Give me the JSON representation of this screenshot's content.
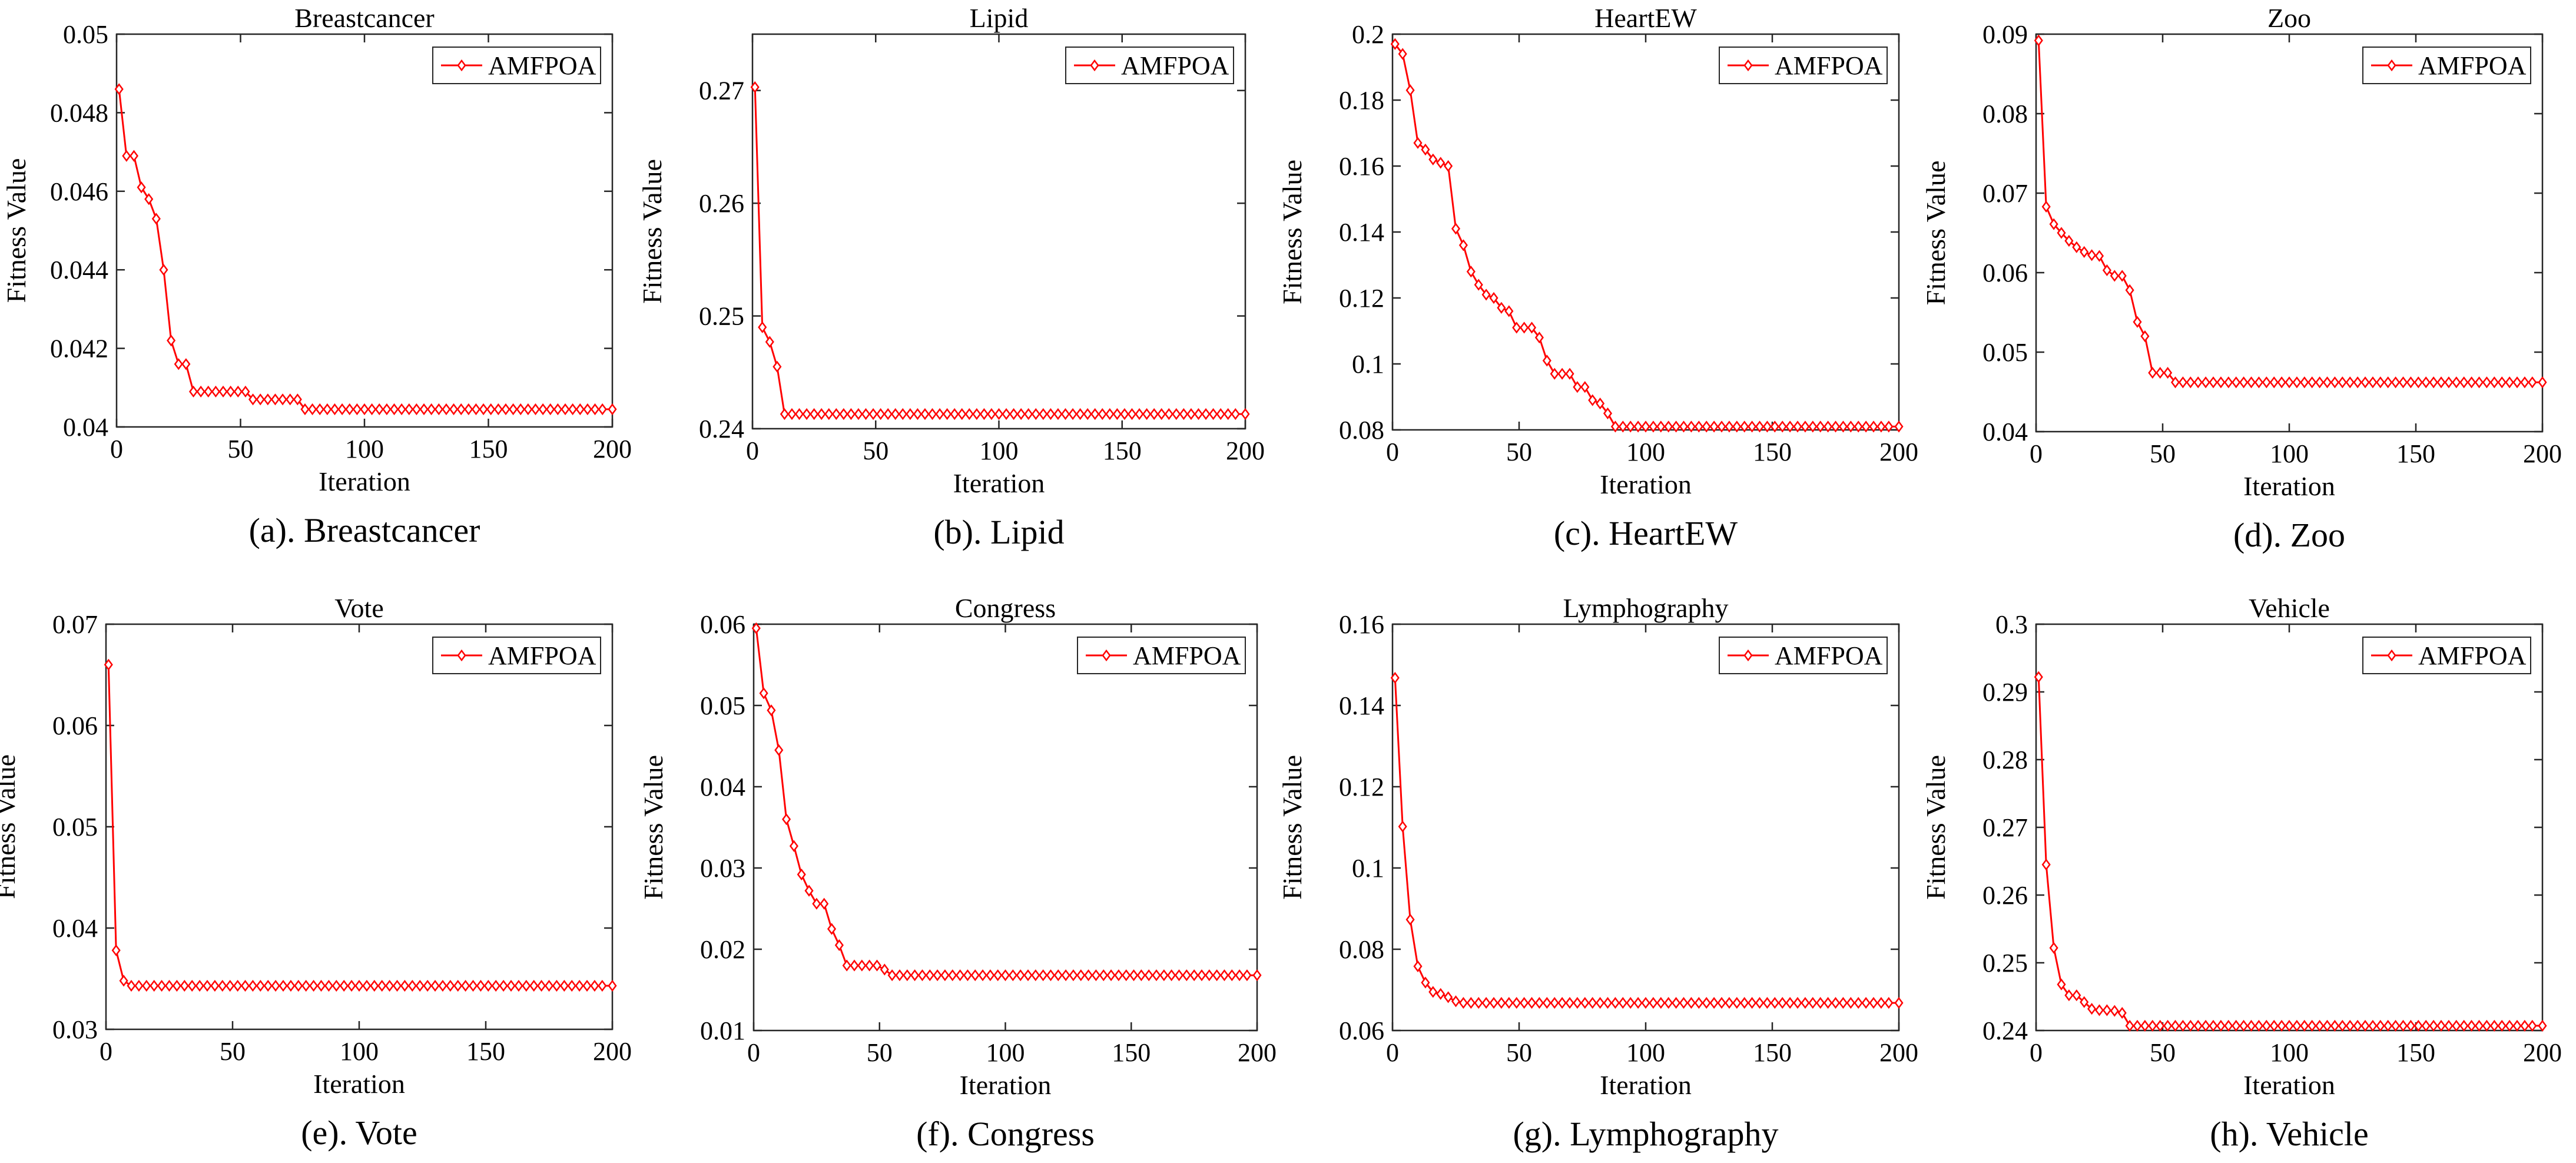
{
  "figure": {
    "accent_color": "#ff0000",
    "axis_color": "#262626"
  },
  "chart_data": [
    {
      "type": "line",
      "title": "Breastcancer",
      "caption": "(a). Breastcancer",
      "xlabel": "Iteration",
      "ylabel": "Fitness Value",
      "xlim": [
        0,
        200
      ],
      "ylim": [
        0.04,
        0.05
      ],
      "xticks": [
        0,
        50,
        100,
        150,
        200
      ],
      "xtick_labels": [
        "0",
        "50",
        "100",
        "150",
        "200"
      ],
      "yticks": [
        0.04,
        0.042,
        0.044,
        0.046,
        0.048,
        0.05
      ],
      "ytick_labels": [
        "0.04",
        "0.042",
        "0.044",
        "0.046",
        "0.048",
        "0.05"
      ],
      "legend": {
        "position": "top-right",
        "label": "AMFPOA"
      },
      "series": [
        {
          "name": "AMFPOA",
          "color": "#ff0000",
          "marker": "diamond",
          "points": [
            [
              1,
              0.0486
            ],
            [
              4,
              0.0469
            ],
            [
              7,
              0.0469
            ],
            [
              10,
              0.0461
            ],
            [
              13,
              0.0458
            ],
            [
              16,
              0.0453
            ],
            [
              19,
              0.044
            ],
            [
              22,
              0.0422
            ],
            [
              25,
              0.0416
            ],
            [
              28,
              0.0416
            ],
            [
              31,
              0.0409
            ],
            [
              52,
              0.0409
            ],
            [
              55,
              0.0407
            ],
            [
              73,
              0.0407
            ],
            [
              76,
              0.04045
            ],
            [
              200,
              0.04045
            ]
          ]
        }
      ]
    },
    {
      "type": "line",
      "title": "Lipid",
      "caption": "(b). Lipid",
      "xlabel": "Iteration",
      "ylabel": "Fitness Value",
      "xlim": [
        0,
        200
      ],
      "ylim": [
        0.24,
        0.275
      ],
      "xticks": [
        0,
        50,
        100,
        150,
        200
      ],
      "xtick_labels": [
        "0",
        "50",
        "100",
        "150",
        "200"
      ],
      "yticks": [
        0.24,
        0.25,
        0.26,
        0.27
      ],
      "ytick_labels": [
        "0.24",
        "0.25",
        "0.26",
        "0.27"
      ],
      "legend": {
        "position": "top-right",
        "label": "AMFPOA"
      },
      "series": [
        {
          "name": "AMFPOA",
          "color": "#ff0000",
          "marker": "diamond",
          "points": [
            [
              1,
              0.2703
            ],
            [
              4,
              0.249
            ],
            [
              7,
              0.2477
            ],
            [
              10,
              0.2455
            ],
            [
              13,
              0.2413
            ],
            [
              200,
              0.2413
            ]
          ]
        }
      ]
    },
    {
      "type": "line",
      "title": "HeartEW",
      "caption": "(c). HeartEW",
      "xlabel": "Iteration",
      "ylabel": "Fitness Value",
      "xlim": [
        0,
        200
      ],
      "ylim": [
        0.08,
        0.2
      ],
      "xticks": [
        0,
        50,
        100,
        150,
        200
      ],
      "xtick_labels": [
        "0",
        "50",
        "100",
        "150",
        "200"
      ],
      "yticks": [
        0.08,
        0.1,
        0.12,
        0.14,
        0.16,
        0.18,
        0.2
      ],
      "ytick_labels": [
        "0.08",
        "0.1",
        "0.12",
        "0.14",
        "0.16",
        "0.18",
        "0.2"
      ],
      "legend": {
        "position": "top-right",
        "label": "AMFPOA"
      },
      "series": [
        {
          "name": "AMFPOA",
          "color": "#ff0000",
          "marker": "diamond",
          "points": [
            [
              1,
              0.197
            ],
            [
              4,
              0.194
            ],
            [
              7,
              0.183
            ],
            [
              10,
              0.167
            ],
            [
              13,
              0.165
            ],
            [
              16,
              0.162
            ],
            [
              19,
              0.161
            ],
            [
              22,
              0.16
            ],
            [
              25,
              0.141
            ],
            [
              28,
              0.136
            ],
            [
              31,
              0.128
            ],
            [
              34,
              0.124
            ],
            [
              37,
              0.121
            ],
            [
              40,
              0.12
            ],
            [
              43,
              0.117
            ],
            [
              46,
              0.116
            ],
            [
              49,
              0.111
            ],
            [
              52,
              0.111
            ],
            [
              55,
              0.111
            ],
            [
              58,
              0.108
            ],
            [
              61,
              0.101
            ],
            [
              64,
              0.097
            ],
            [
              67,
              0.097
            ],
            [
              70,
              0.097
            ],
            [
              73,
              0.093
            ],
            [
              76,
              0.093
            ],
            [
              79,
              0.089
            ],
            [
              82,
              0.088
            ],
            [
              85,
              0.085
            ],
            [
              88,
              0.081
            ],
            [
              200,
              0.081
            ]
          ]
        }
      ]
    },
    {
      "type": "line",
      "title": "Zoo",
      "caption": "(d). Zoo",
      "xlabel": "Iteration",
      "ylabel": "Fitness Value",
      "xlim": [
        0,
        200
      ],
      "ylim": [
        0.04,
        0.09
      ],
      "xticks": [
        0,
        50,
        100,
        150,
        200
      ],
      "xtick_labels": [
        "0",
        "50",
        "100",
        "150",
        "200"
      ],
      "yticks": [
        0.04,
        0.05,
        0.06,
        0.07,
        0.08,
        0.09
      ],
      "ytick_labels": [
        "0.04",
        "0.05",
        "0.06",
        "0.07",
        "0.08",
        "0.09"
      ],
      "legend": {
        "position": "top-right",
        "label": "AMFPOA"
      },
      "series": [
        {
          "name": "AMFPOA",
          "color": "#ff0000",
          "marker": "diamond",
          "points": [
            [
              1,
              0.0892
            ],
            [
              4,
              0.0683
            ],
            [
              7,
              0.0661
            ],
            [
              10,
              0.065
            ],
            [
              13,
              0.064
            ],
            [
              16,
              0.0632
            ],
            [
              19,
              0.0626
            ],
            [
              22,
              0.0622
            ],
            [
              25,
              0.0621
            ],
            [
              28,
              0.0603
            ],
            [
              31,
              0.0596
            ],
            [
              34,
              0.0596
            ],
            [
              37,
              0.0578
            ],
            [
              40,
              0.0538
            ],
            [
              43,
              0.052
            ],
            [
              46,
              0.0474
            ],
            [
              49,
              0.0474
            ],
            [
              52,
              0.0474
            ],
            [
              55,
              0.0462
            ],
            [
              200,
              0.0462
            ]
          ]
        }
      ]
    },
    {
      "type": "line",
      "title": "Vote",
      "caption": "(e). Vote",
      "xlabel": "Iteration",
      "ylabel": "Fitness Value",
      "xlim": [
        0,
        200
      ],
      "ylim": [
        0.03,
        0.07
      ],
      "xticks": [
        0,
        50,
        100,
        150,
        200
      ],
      "xtick_labels": [
        "0",
        "50",
        "100",
        "150",
        "200"
      ],
      "yticks": [
        0.03,
        0.04,
        0.05,
        0.06,
        0.07
      ],
      "ytick_labels": [
        "0.03",
        "0.04",
        "0.05",
        "0.06",
        "0.07"
      ],
      "legend": {
        "position": "top-right",
        "label": "AMFPOA"
      },
      "series": [
        {
          "name": "AMFPOA",
          "color": "#ff0000",
          "marker": "diamond",
          "points": [
            [
              1,
              0.066
            ],
            [
              4,
              0.0378
            ],
            [
              7,
              0.0348
            ],
            [
              10,
              0.0343
            ],
            [
              200,
              0.0343
            ]
          ]
        }
      ]
    },
    {
      "type": "line",
      "title": "Congress",
      "caption": "(f). Congress",
      "xlabel": "Iteration",
      "ylabel": "Fitness Value",
      "xlim": [
        0,
        200
      ],
      "ylim": [
        0.01,
        0.06
      ],
      "xticks": [
        0,
        50,
        100,
        150,
        200
      ],
      "xtick_labels": [
        "0",
        "50",
        "100",
        "150",
        "200"
      ],
      "yticks": [
        0.01,
        0.02,
        0.03,
        0.04,
        0.05,
        0.06
      ],
      "ytick_labels": [
        "0.01",
        "0.02",
        "0.03",
        "0.04",
        "0.05",
        "0.06"
      ],
      "legend": {
        "position": "top-right",
        "label": "AMFPOA"
      },
      "series": [
        {
          "name": "AMFPOA",
          "color": "#ff0000",
          "marker": "diamond",
          "points": [
            [
              1,
              0.0595
            ],
            [
              4,
              0.0515
            ],
            [
              7,
              0.0494
            ],
            [
              10,
              0.0445
            ],
            [
              13,
              0.036
            ],
            [
              16,
              0.0327
            ],
            [
              19,
              0.0292
            ],
            [
              22,
              0.0272
            ],
            [
              25,
              0.0256
            ],
            [
              28,
              0.0256
            ],
            [
              31,
              0.0225
            ],
            [
              34,
              0.0205
            ],
            [
              37,
              0.018
            ],
            [
              40,
              0.018
            ],
            [
              43,
              0.018
            ],
            [
              46,
              0.018
            ],
            [
              49,
              0.018
            ],
            [
              52,
              0.0175
            ],
            [
              55,
              0.0168
            ],
            [
              200,
              0.0168
            ]
          ]
        }
      ]
    },
    {
      "type": "line",
      "title": "Lymphography",
      "caption": "(g). Lymphography",
      "xlabel": "Iteration",
      "ylabel": "Fitness Value",
      "xlim": [
        0,
        200
      ],
      "ylim": [
        0.06,
        0.16
      ],
      "xticks": [
        0,
        50,
        100,
        150,
        200
      ],
      "xtick_labels": [
        "0",
        "50",
        "100",
        "150",
        "200"
      ],
      "yticks": [
        0.06,
        0.08,
        0.1,
        0.12,
        0.14,
        0.16
      ],
      "ytick_labels": [
        "0.06",
        "0.08",
        "0.1",
        "0.12",
        "0.14",
        "0.16"
      ],
      "legend": {
        "position": "top-right",
        "label": "AMFPOA"
      },
      "series": [
        {
          "name": "AMFPOA",
          "color": "#ff0000",
          "marker": "diamond",
          "points": [
            [
              1,
              0.1468
            ],
            [
              4,
              0.1102
            ],
            [
              7,
              0.0873
            ],
            [
              10,
              0.0758
            ],
            [
              13,
              0.0718
            ],
            [
              16,
              0.0695
            ],
            [
              19,
              0.069
            ],
            [
              22,
              0.0682
            ],
            [
              25,
              0.0672
            ],
            [
              28,
              0.0668
            ],
            [
              200,
              0.0668
            ]
          ]
        }
      ]
    },
    {
      "type": "line",
      "title": "Vehicle",
      "caption": "(h). Vehicle",
      "xlabel": "Iteration",
      "ylabel": "Fitness Value",
      "xlim": [
        0,
        200
      ],
      "ylim": [
        0.24,
        0.3
      ],
      "xticks": [
        0,
        50,
        100,
        150,
        200
      ],
      "xtick_labels": [
        "0",
        "50",
        "100",
        "150",
        "200"
      ],
      "yticks": [
        0.24,
        0.25,
        0.26,
        0.27,
        0.28,
        0.29,
        0.3
      ],
      "ytick_labels": [
        "0.24",
        "0.25",
        "0.26",
        "0.27",
        "0.28",
        "0.29",
        "0.3"
      ],
      "legend": {
        "position": "top-right",
        "label": "AMFPOA"
      },
      "series": [
        {
          "name": "AMFPOA",
          "color": "#ff0000",
          "marker": "diamond",
          "points": [
            [
              1,
              0.2922
            ],
            [
              4,
              0.2645
            ],
            [
              7,
              0.2522
            ],
            [
              10,
              0.2468
            ],
            [
              13,
              0.2452
            ],
            [
              16,
              0.2452
            ],
            [
              19,
              0.2442
            ],
            [
              22,
              0.2432
            ],
            [
              25,
              0.243
            ],
            [
              28,
              0.243
            ],
            [
              31,
              0.2429
            ],
            [
              34,
              0.2426
            ],
            [
              37,
              0.2407
            ],
            [
              200,
              0.2407
            ]
          ]
        }
      ]
    }
  ]
}
